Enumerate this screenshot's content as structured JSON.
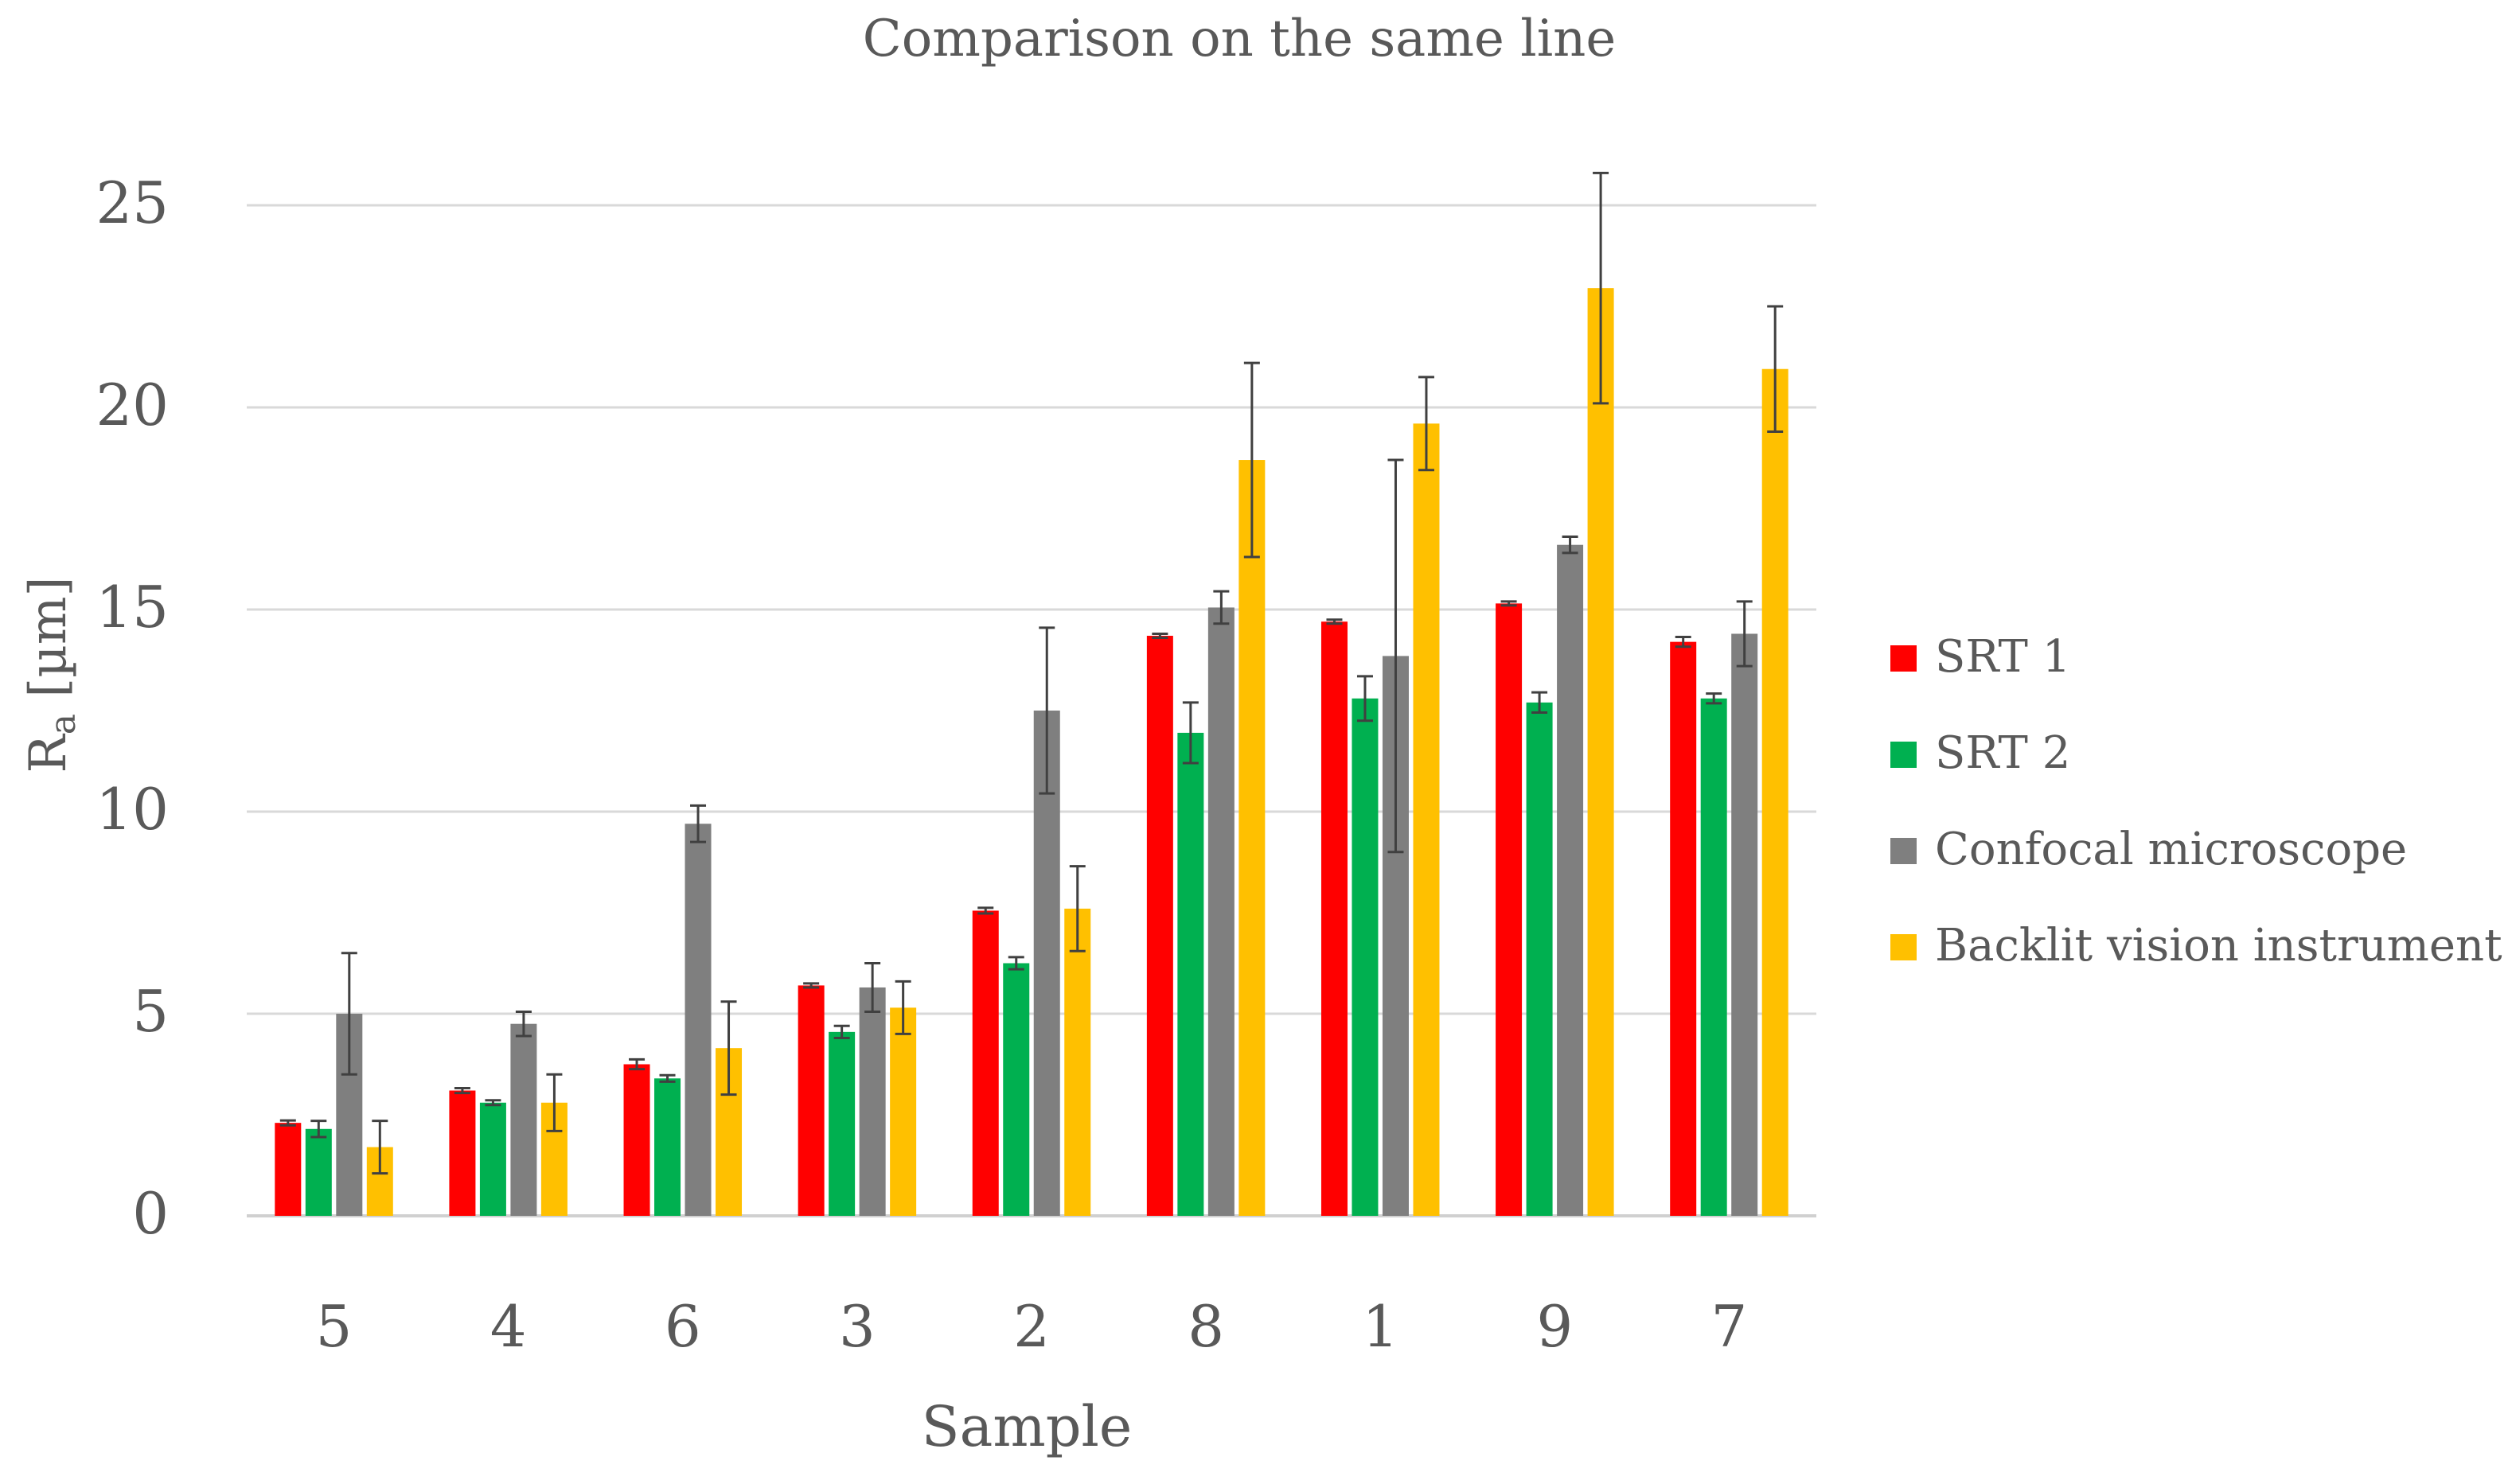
{
  "chart_data": {
    "type": "bar",
    "title": "Comparison on the same line",
    "xlabel": "Sample",
    "ylabel_main": "R",
    "ylabel_sub": "a",
    "ylabel_unit": " [µm]",
    "ylim": [
      0,
      27
    ],
    "yticks": [
      0,
      5,
      10,
      15,
      20,
      25
    ],
    "grid": true,
    "legend_position": "right",
    "categories": [
      "5",
      "4",
      "6",
      "3",
      "2",
      "8",
      "1",
      "9",
      "7"
    ],
    "series": [
      {
        "name": "SRT 1",
        "color": "#ff0000",
        "values": [
          2.3,
          3.1,
          3.75,
          5.7,
          7.55,
          14.35,
          14.7,
          15.15,
          14.2
        ],
        "errors": [
          0.06,
          0.06,
          0.12,
          0.05,
          0.07,
          0.05,
          0.05,
          0.05,
          0.12
        ]
      },
      {
        "name": "SRT 2",
        "color": "#00b050",
        "values": [
          2.15,
          2.8,
          3.4,
          4.55,
          6.25,
          11.95,
          12.8,
          12.7,
          12.8
        ],
        "errors": [
          0.2,
          0.06,
          0.08,
          0.15,
          0.15,
          0.75,
          0.55,
          0.25,
          0.12
        ]
      },
      {
        "name": "Confocal microscope",
        "color": "#7f7f7f",
        "values": [
          5.0,
          4.75,
          9.7,
          5.65,
          12.5,
          15.05,
          13.85,
          16.6,
          14.4
        ],
        "errors": [
          1.5,
          0.3,
          0.45,
          0.6,
          2.05,
          0.4,
          4.85,
          0.2,
          0.8
        ]
      },
      {
        "name": "Backlit vision instrument",
        "color": "#ffc000",
        "values": [
          1.7,
          2.8,
          4.15,
          5.15,
          7.6,
          18.7,
          19.6,
          22.95,
          20.95
        ],
        "errors": [
          0.65,
          0.7,
          1.15,
          0.65,
          1.05,
          2.4,
          1.15,
          2.85,
          1.55
        ]
      }
    ]
  }
}
